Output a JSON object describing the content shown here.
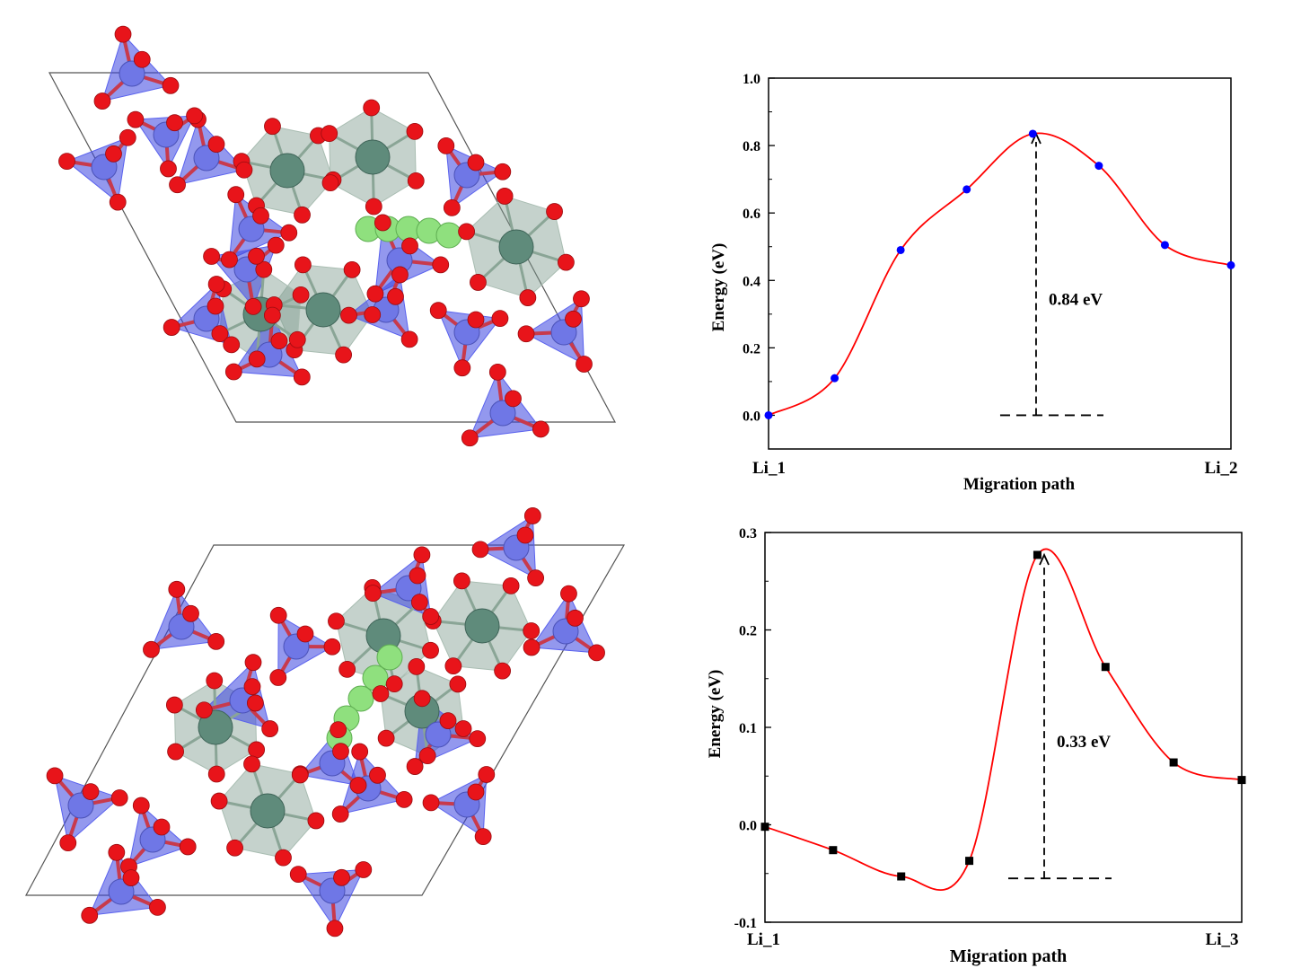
{
  "colors": {
    "oxygen": "#e8141a",
    "silicon": "#6f77e6",
    "metal": "#5f8b7b",
    "lithium": "#8fe07e",
    "tetra": "#3a44e0",
    "octa": "#7f9c8d",
    "curve": "#ff0000",
    "marker1": "#0000ff",
    "marker2": "#000000"
  },
  "chart_data": [
    {
      "type": "line",
      "title": "",
      "xlabel": "Migration path",
      "ylabel": "Energy (eV)",
      "x_tick_labels": [
        "Li_1",
        "Li_2"
      ],
      "ylim": [
        -0.1,
        1.0
      ],
      "yticks": [
        "0.0",
        "0.2",
        "0.4",
        "0.6",
        "0.8",
        "1.0"
      ],
      "x": [
        0,
        1,
        2,
        3,
        4,
        5,
        6,
        7
      ],
      "values": [
        0.0,
        0.11,
        0.49,
        0.67,
        0.835,
        0.74,
        0.505,
        0.445
      ],
      "annotation": {
        "text": "0.84 eV",
        "x": 4.05,
        "from": 0.0,
        "to": 0.835
      },
      "marker": "circle",
      "grid": false
    },
    {
      "type": "line",
      "title": "",
      "xlabel": "Migration path",
      "ylabel": "Energy (eV)",
      "x_tick_labels": [
        "Li_1",
        "Li_3"
      ],
      "ylim": [
        -0.1,
        0.3
      ],
      "yticks": [
        "-0.1",
        "0.0",
        "0.1",
        "0.2",
        "0.3"
      ],
      "x": [
        0,
        1,
        2,
        3,
        4,
        5,
        6,
        7
      ],
      "values": [
        -0.002,
        -0.026,
        -0.053,
        -0.037,
        0.277,
        0.162,
        0.064,
        0.046
      ],
      "annotation": {
        "text": "0.33 eV",
        "x": 4.1,
        "from": -0.055,
        "to": 0.277
      },
      "marker": "square",
      "grid": false
    }
  ]
}
